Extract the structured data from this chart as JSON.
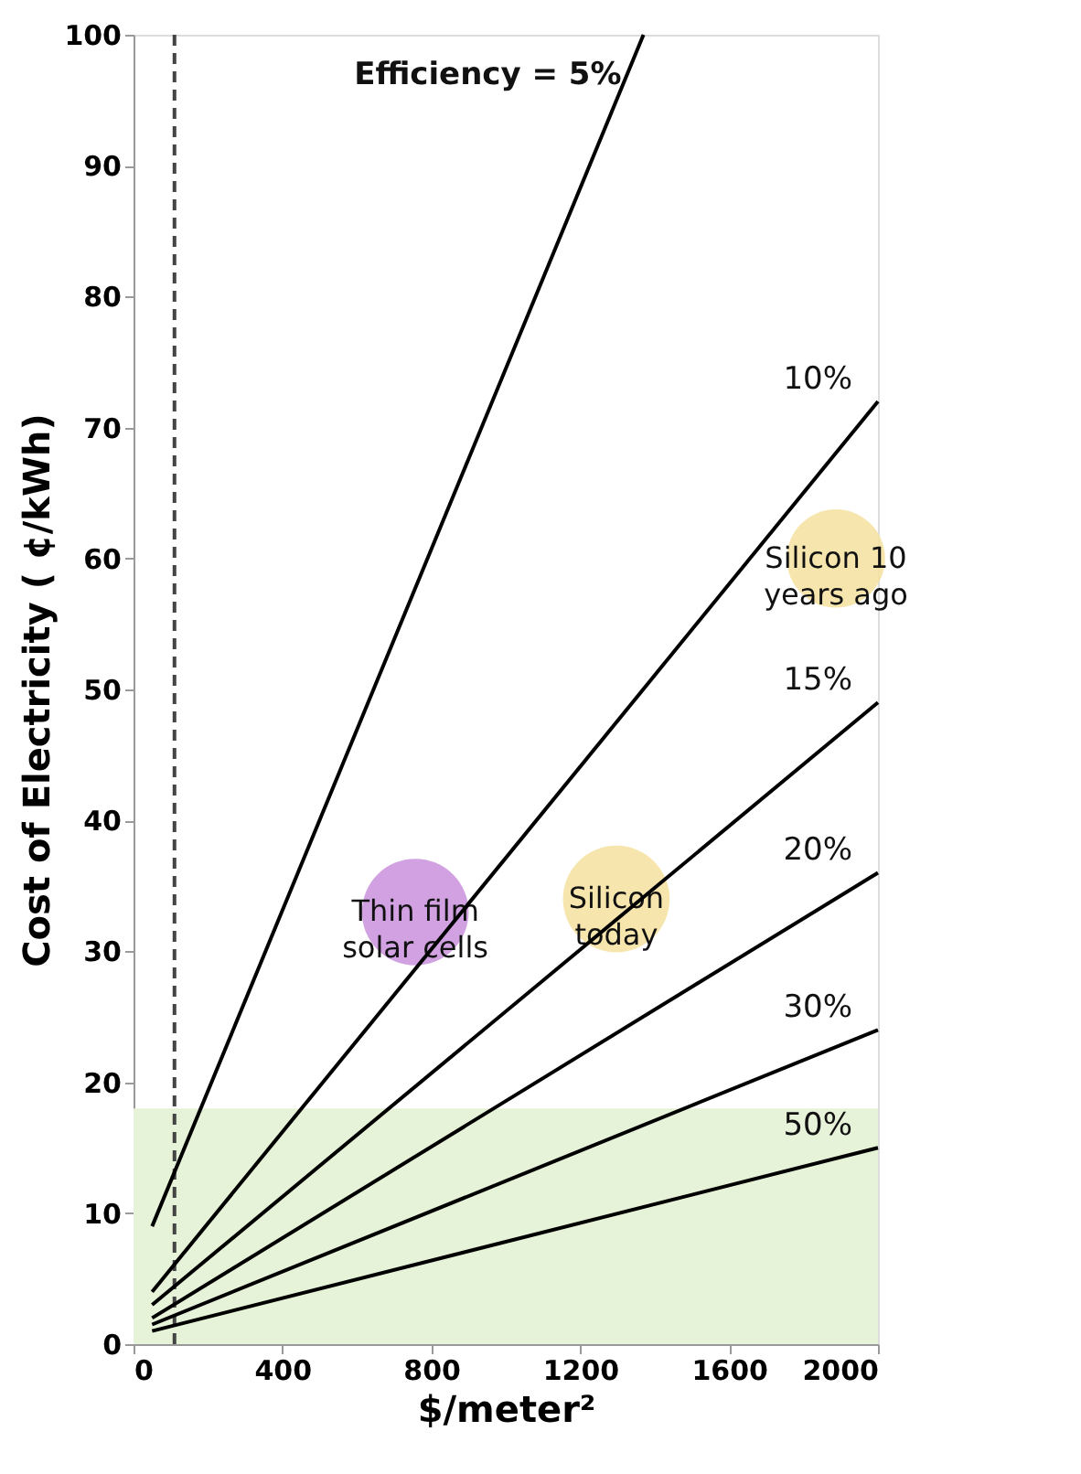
{
  "chart_data": {
    "type": "line",
    "xlabel": "$/meter²",
    "ylabel": "Cost of Electricity ( ¢/kWh)",
    "xlim": [
      0,
      2000
    ],
    "xticks": [
      0,
      400,
      800,
      1200,
      1600,
      2000
    ],
    "ylim": [
      0,
      100
    ],
    "yticks": [
      0,
      10,
      20,
      30,
      40,
      50,
      60,
      70,
      80,
      90,
      100
    ],
    "grid": false,
    "line_style": "solid",
    "series": [
      {
        "name": "Efficiency = 5%",
        "color": "#000000",
        "x": [
          50,
          1370
        ],
        "values": [
          9,
          100
        ]
      },
      {
        "name": "10%",
        "color": "#000000",
        "x": [
          50,
          2000
        ],
        "values": [
          4,
          72
        ]
      },
      {
        "name": "15%",
        "color": "#000000",
        "x": [
          50,
          2000
        ],
        "values": [
          3,
          49
        ]
      },
      {
        "name": "20%",
        "color": "#000000",
        "x": [
          50,
          2000
        ],
        "values": [
          2,
          36
        ]
      },
      {
        "name": "30%",
        "color": "#000000",
        "x": [
          50,
          2000
        ],
        "values": [
          1.5,
          24
        ]
      },
      {
        "name": "50%",
        "color": "#000000",
        "x": [
          50,
          2000
        ],
        "values": [
          1,
          15
        ]
      },
      {
        "type": "bubble",
        "name": "Thin film\nsolar cells",
        "color": "#c990dc",
        "x": [
          757
        ],
        "values": [
          33
        ],
        "sizes": [
          1
        ]
      },
      {
        "type": "bubble",
        "name": "Silicon\ntoday",
        "color": "#f5e2a0",
        "x": [
          1297
        ],
        "values": [
          34
        ],
        "sizes": [
          1
        ]
      },
      {
        "type": "bubble",
        "name": "Silicon 10\nyears ago",
        "color": "#f5e2a0",
        "x": [
          1887
        ],
        "values": [
          60
        ],
        "sizes": [
          0.85
        ]
      }
    ],
    "bands": [
      {
        "axis": "y",
        "from": 0,
        "to": 18,
        "color": "#e7f3d8"
      }
    ],
    "ref_lines": [
      {
        "axis": "x",
        "value": 110,
        "color": "#444444",
        "line_style": "dashed"
      }
    ]
  }
}
